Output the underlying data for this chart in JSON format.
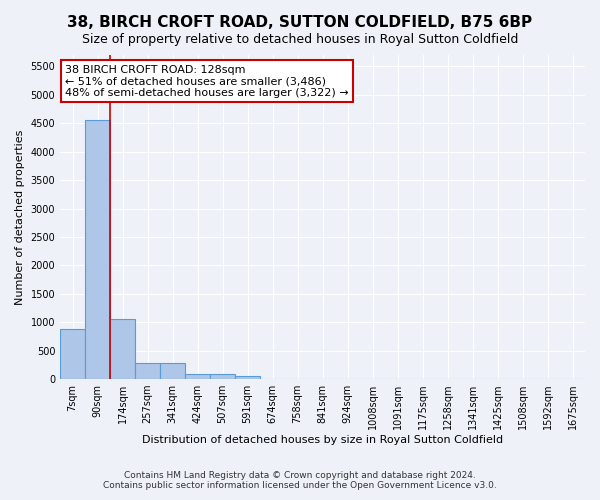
{
  "title": "38, BIRCH CROFT ROAD, SUTTON COLDFIELD, B75 6BP",
  "subtitle": "Size of property relative to detached houses in Royal Sutton Coldfield",
  "xlabel": "Distribution of detached houses by size in Royal Sutton Coldfield",
  "ylabel": "Number of detached properties",
  "footer1": "Contains HM Land Registry data © Crown copyright and database right 2024.",
  "footer2": "Contains public sector information licensed under the Open Government Licence v3.0.",
  "bin_labels": [
    "7sqm",
    "90sqm",
    "174sqm",
    "257sqm",
    "341sqm",
    "424sqm",
    "507sqm",
    "591sqm",
    "674sqm",
    "758sqm",
    "841sqm",
    "924sqm",
    "1008sqm",
    "1091sqm",
    "1175sqm",
    "1258sqm",
    "1341sqm",
    "1425sqm",
    "1508sqm",
    "1592sqm",
    "1675sqm"
  ],
  "bar_heights": [
    880,
    4560,
    1060,
    290,
    290,
    90,
    90,
    50,
    0,
    0,
    0,
    0,
    0,
    0,
    0,
    0,
    0,
    0,
    0,
    0,
    0
  ],
  "bar_color": "#aec6e8",
  "bar_edge_color": "#5b9bd5",
  "vline_x_index": 1.48,
  "vline_color": "#cc0000",
  "ylim": [
    0,
    5700
  ],
  "yticks": [
    0,
    500,
    1000,
    1500,
    2000,
    2500,
    3000,
    3500,
    4000,
    4500,
    5000,
    5500
  ],
  "annotation_text": "38 BIRCH CROFT ROAD: 128sqm\n← 51% of detached houses are smaller (3,486)\n48% of semi-detached houses are larger (3,322) →",
  "annotation_box_color": "#ffffff",
  "annotation_box_edge_color": "#cc0000",
  "bg_color": "#eef2f8",
  "plot_bg_color": "#eef2f8",
  "grid_color": "#ffffff",
  "title_fontsize": 11,
  "subtitle_fontsize": 9,
  "label_fontsize": 8,
  "tick_fontsize": 7,
  "annotation_fontsize": 8
}
